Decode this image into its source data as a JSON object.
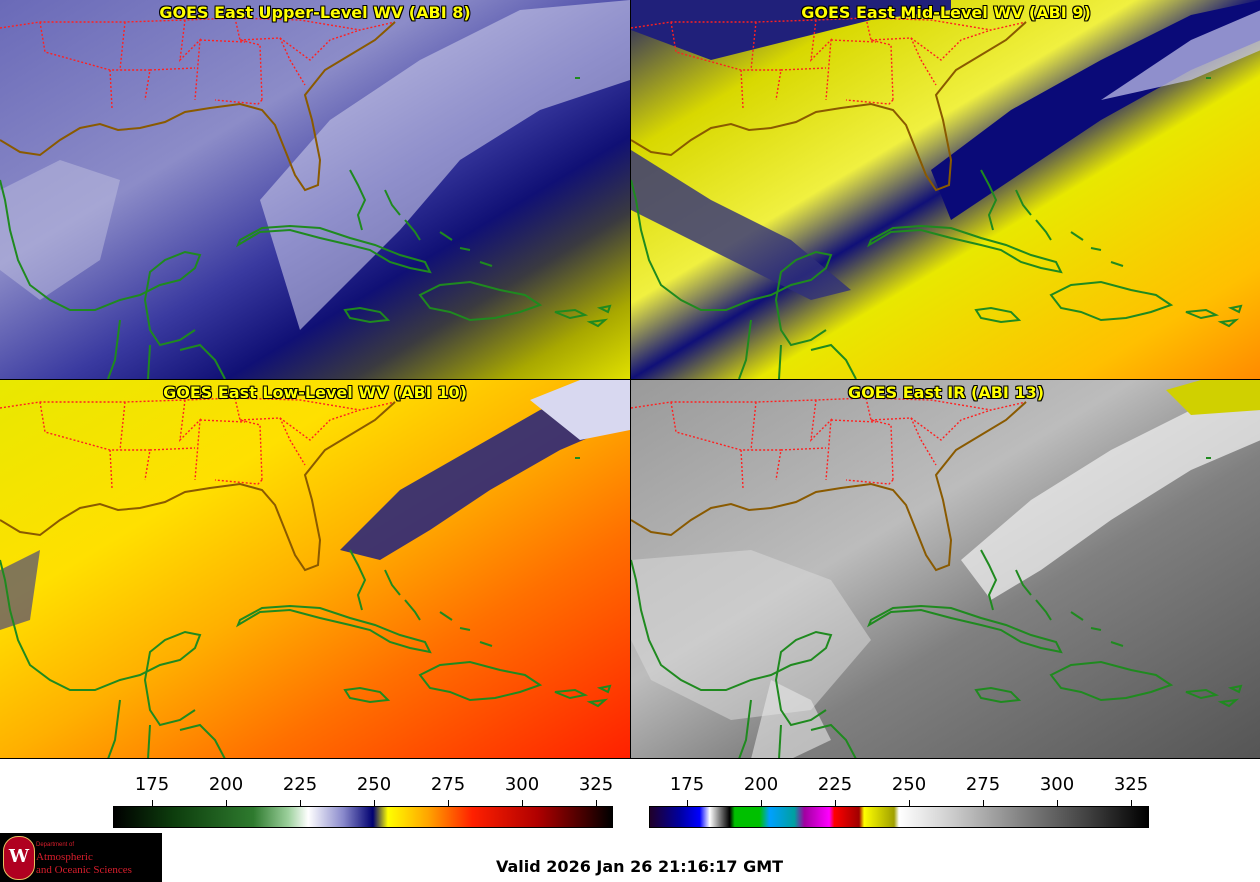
{
  "panels": [
    {
      "id": "upper",
      "title": "GOES East Upper-Level WV (ABI 8)"
    },
    {
      "id": "mid",
      "title": "GOES East Mid-Level WV (ABI 9)"
    },
    {
      "id": "low",
      "title": "GOES East Low-Level WV (ABI 10)"
    },
    {
      "id": "ir",
      "title": "GOES East IR (ABI 13)"
    }
  ],
  "colorbars": {
    "wv": {
      "ticks": [
        "175",
        "200",
        "225",
        "250",
        "275",
        "300",
        "325"
      ]
    },
    "ir": {
      "ticks": [
        "175",
        "200",
        "225",
        "250",
        "275",
        "300",
        "325"
      ]
    }
  },
  "footer": {
    "valid_time": "Valid 2026 Jan 26 21:16:17 GMT",
    "logo": {
      "dept": "Department of",
      "line1": "Atmospheric",
      "line2": "and Oceanic Sciences",
      "seal_letter": "W"
    }
  },
  "colors": {
    "state_borders": "#ff2020",
    "coastlines": "#1f8a1f",
    "us_coast": "#8a5a00",
    "title_text": "#ffff00"
  }
}
